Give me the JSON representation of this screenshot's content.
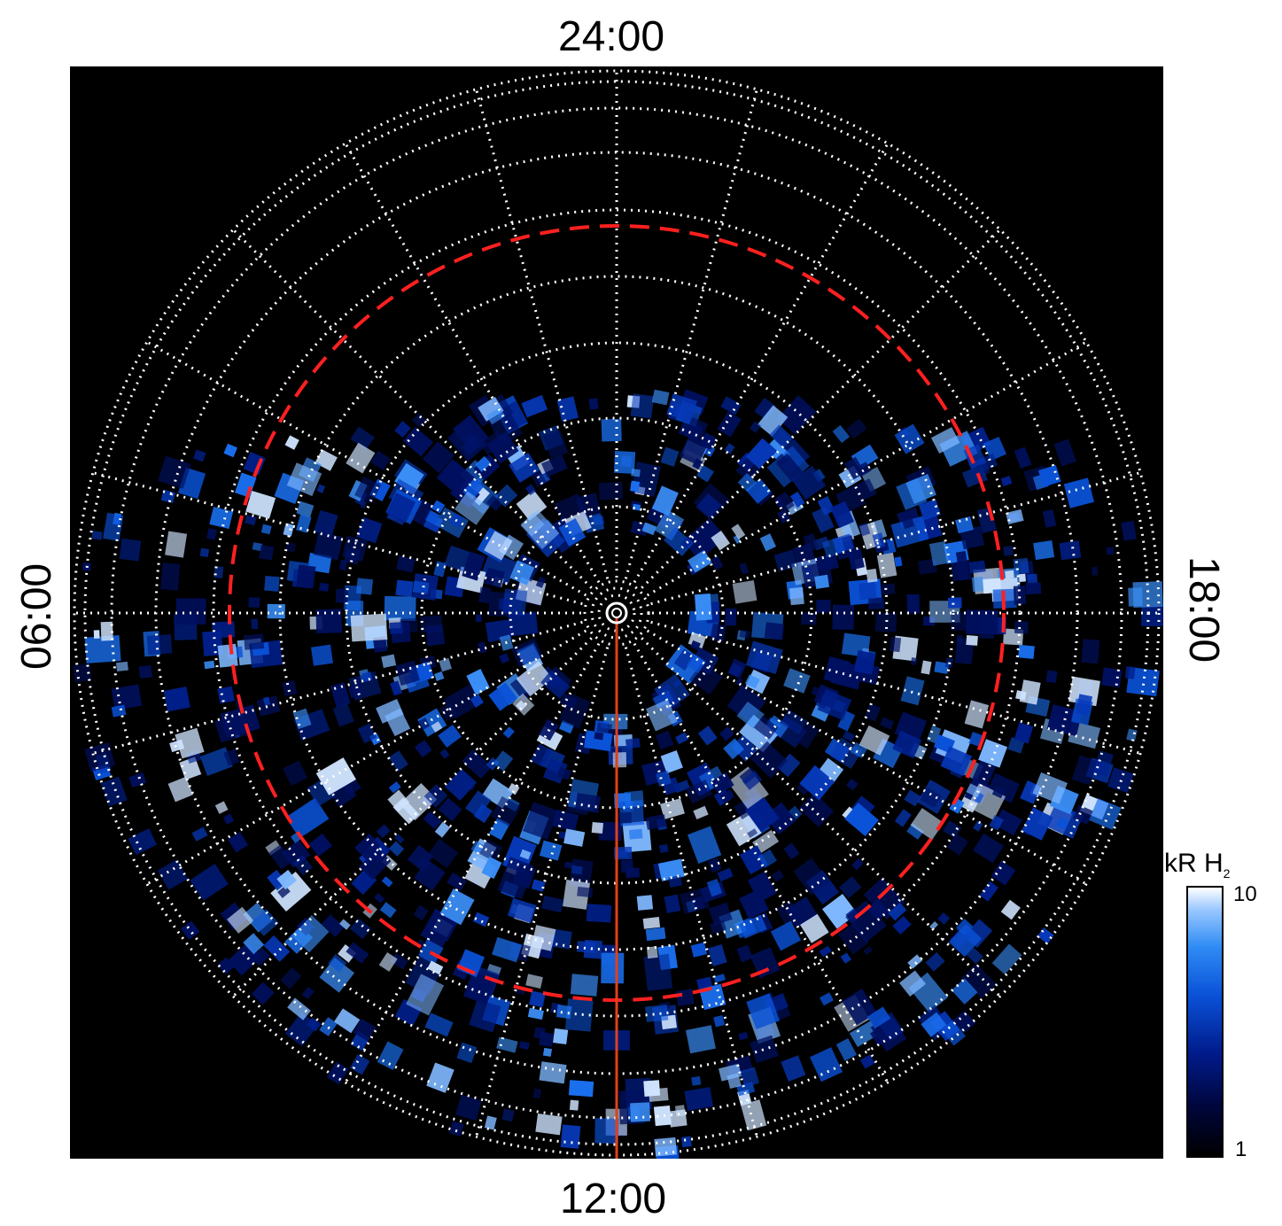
{
  "labels": {
    "top": "24:00",
    "bottom": "12:00",
    "left": "06:00",
    "right": "18:00"
  },
  "colorbar": {
    "title": "kR H",
    "title_sub": "2",
    "max_label": "10",
    "min_label": "1",
    "colors": [
      "#000000",
      "#00063a",
      "#001a8a",
      "#0a52d8",
      "#2f8cf4",
      "#9cc8ff",
      "#ffffff"
    ]
  },
  "map": {
    "projection": "polar",
    "background_color": "#000000",
    "grid_color": "#ffffff",
    "boundary_color": "#ff2020",
    "meridian_color": "#e0401a",
    "emission_colormap": "blue"
  }
}
